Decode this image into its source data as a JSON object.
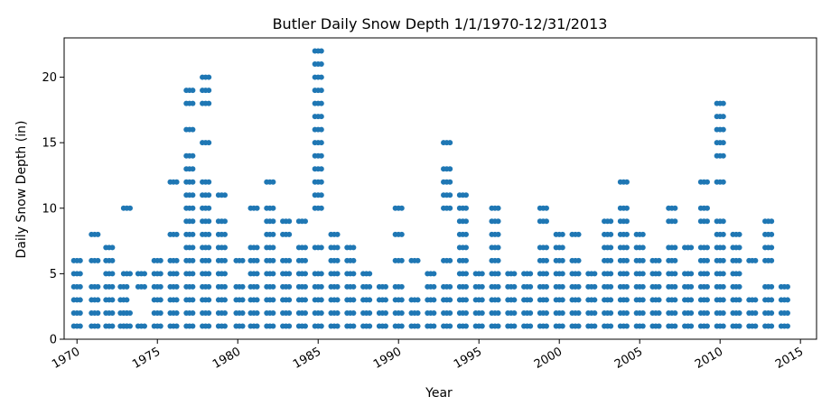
{
  "chart_data": {
    "type": "scatter",
    "title": "Butler Daily Snow Depth 1/1/1970-12/31/2013",
    "xlabel": "Year",
    "ylabel": "Daily Snow Depth (in)",
    "xlim": [
      1969.2,
      2016.0
    ],
    "ylim": [
      0,
      23
    ],
    "xticks": [
      1970,
      1975,
      1980,
      1985,
      1990,
      1995,
      2000,
      2005,
      2010,
      2015
    ],
    "yticks": [
      0,
      5,
      10,
      15,
      20
    ],
    "color": "#1f77b4",
    "series": [
      {
        "name": "",
        "columns": [
          {
            "x": 1970.0,
            "depths": [
              1,
              2,
              3,
              4,
              5,
              6
            ]
          },
          {
            "x": 1971.1,
            "depths": [
              1,
              2,
              3,
              4,
              6,
              8
            ]
          },
          {
            "x": 1972.0,
            "depths": [
              1,
              2,
              3,
              4,
              5,
              6,
              7
            ]
          },
          {
            "x": 1972.9,
            "depths": [
              1,
              2,
              3,
              4
            ]
          },
          {
            "x": 1973.1,
            "depths": [
              1,
              2,
              5,
              10
            ]
          },
          {
            "x": 1974.0,
            "depths": [
              1,
              4,
              5
            ]
          },
          {
            "x": 1975.0,
            "depths": [
              1,
              2,
              3,
              4,
              5,
              6
            ]
          },
          {
            "x": 1976.0,
            "depths": [
              1,
              2,
              3,
              4,
              5,
              6,
              8,
              12
            ]
          },
          {
            "x": 1977.0,
            "depths": [
              1,
              2,
              3,
              4,
              5,
              6,
              7,
              8,
              9,
              10,
              11,
              12,
              13,
              14,
              16,
              18,
              19
            ]
          },
          {
            "x": 1978.0,
            "depths": [
              1,
              2,
              3,
              4,
              5,
              6,
              7,
              8,
              9,
              10,
              11,
              12,
              15,
              18,
              19,
              20
            ]
          },
          {
            "x": 1979.0,
            "depths": [
              1,
              2,
              3,
              4,
              5,
              6,
              7,
              8,
              9,
              11
            ]
          },
          {
            "x": 1980.1,
            "depths": [
              1,
              2,
              3,
              4,
              6
            ]
          },
          {
            "x": 1981.0,
            "depths": [
              1,
              2,
              3,
              4,
              5,
              6,
              7,
              10
            ]
          },
          {
            "x": 1982.0,
            "depths": [
              1,
              2,
              3,
              4,
              5,
              6,
              7,
              8,
              9,
              10,
              12
            ]
          },
          {
            "x": 1983.0,
            "depths": [
              1,
              2,
              3,
              4,
              5,
              6,
              8,
              9
            ]
          },
          {
            "x": 1984.0,
            "depths": [
              1,
              2,
              3,
              4,
              5,
              6,
              7,
              9
            ]
          },
          {
            "x": 1985.0,
            "depths": [
              1,
              2,
              3,
              4,
              5,
              7,
              10,
              11,
              12,
              13,
              14,
              15,
              16,
              17,
              18,
              19,
              20,
              21,
              22
            ]
          },
          {
            "x": 1986.0,
            "depths": [
              1,
              2,
              3,
              4,
              5,
              6,
              7,
              8
            ]
          },
          {
            "x": 1987.0,
            "depths": [
              1,
              2,
              3,
              4,
              5,
              6,
              7
            ]
          },
          {
            "x": 1988.0,
            "depths": [
              1,
              2,
              3,
              4,
              5
            ]
          },
          {
            "x": 1989.0,
            "depths": [
              1,
              2,
              3,
              4
            ]
          },
          {
            "x": 1990.0,
            "depths": [
              1,
              2,
              3,
              4,
              6,
              8,
              10
            ]
          },
          {
            "x": 1991.0,
            "depths": [
              1,
              2,
              3,
              6
            ]
          },
          {
            "x": 1992.0,
            "depths": [
              1,
              2,
              3,
              4,
              5
            ]
          },
          {
            "x": 1993.0,
            "depths": [
              1,
              2,
              3,
              4,
              6,
              10,
              11,
              12,
              13,
              15
            ]
          },
          {
            "x": 1994.0,
            "depths": [
              1,
              2,
              3,
              4,
              5,
              6,
              7,
              8,
              9,
              10,
              11
            ]
          },
          {
            "x": 1995.0,
            "depths": [
              1,
              2,
              3,
              4,
              5
            ]
          },
          {
            "x": 1996.0,
            "depths": [
              1,
              2,
              3,
              4,
              5,
              6,
              7,
              8,
              9,
              10
            ]
          },
          {
            "x": 1997.0,
            "depths": [
              1,
              2,
              3,
              4,
              5
            ]
          },
          {
            "x": 1998.0,
            "depths": [
              1,
              2,
              3,
              4,
              5
            ]
          },
          {
            "x": 1999.0,
            "depths": [
              1,
              2,
              3,
              4,
              5,
              6,
              7,
              9,
              10
            ]
          },
          {
            "x": 2000.0,
            "depths": [
              1,
              2,
              3,
              4,
              5,
              6,
              7,
              8
            ]
          },
          {
            "x": 2001.0,
            "depths": [
              1,
              2,
              3,
              4,
              5,
              6,
              8
            ]
          },
          {
            "x": 2002.0,
            "depths": [
              1,
              2,
              3,
              4,
              5
            ]
          },
          {
            "x": 2003.0,
            "depths": [
              1,
              2,
              3,
              4,
              5,
              6,
              7,
              8,
              9
            ]
          },
          {
            "x": 2004.0,
            "depths": [
              1,
              2,
              3,
              4,
              5,
              6,
              7,
              8,
              9,
              10,
              12
            ]
          },
          {
            "x": 2005.0,
            "depths": [
              1,
              2,
              3,
              4,
              5,
              6,
              7,
              8
            ]
          },
          {
            "x": 2006.0,
            "depths": [
              1,
              2,
              3,
              4,
              5,
              6
            ]
          },
          {
            "x": 2007.0,
            "depths": [
              1,
              2,
              3,
              4,
              5,
              6,
              7,
              9,
              10
            ]
          },
          {
            "x": 2008.0,
            "depths": [
              1,
              2,
              3,
              4,
              5,
              7
            ]
          },
          {
            "x": 2009.0,
            "depths": [
              1,
              2,
              3,
              4,
              5,
              6,
              7,
              9,
              10,
              12
            ]
          },
          {
            "x": 2010.0,
            "depths": [
              1,
              2,
              3,
              4,
              5,
              6,
              7,
              8,
              9,
              12,
              14,
              15,
              16,
              17,
              18
            ]
          },
          {
            "x": 2011.0,
            "depths": [
              1,
              2,
              3,
              4,
              5,
              6,
              7,
              8
            ]
          },
          {
            "x": 2012.0,
            "depths": [
              1,
              2,
              3,
              6
            ]
          },
          {
            "x": 2013.0,
            "depths": [
              1,
              2,
              3,
              4,
              6,
              7,
              8,
              9
            ]
          },
          {
            "x": 2014.0,
            "depths": [
              1,
              2,
              3,
              4
            ]
          }
        ]
      }
    ]
  }
}
